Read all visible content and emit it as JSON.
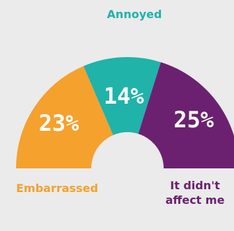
{
  "chart_data": {
    "type": "pie",
    "subtype": "semi-donut",
    "title": "",
    "slices": [
      {
        "label": "Embarrassed",
        "value": 23,
        "display": "23%",
        "color": "#f5a12d"
      },
      {
        "label": "Annoyed",
        "value": 14,
        "display": "14%",
        "color": "#1fb3aa"
      },
      {
        "label": "It didn't affect me",
        "value": 25,
        "display": "25%",
        "color": "#6b2170",
        "display_lines": [
          "It didn't",
          "affect me"
        ]
      }
    ],
    "background": "#ebebeb"
  }
}
